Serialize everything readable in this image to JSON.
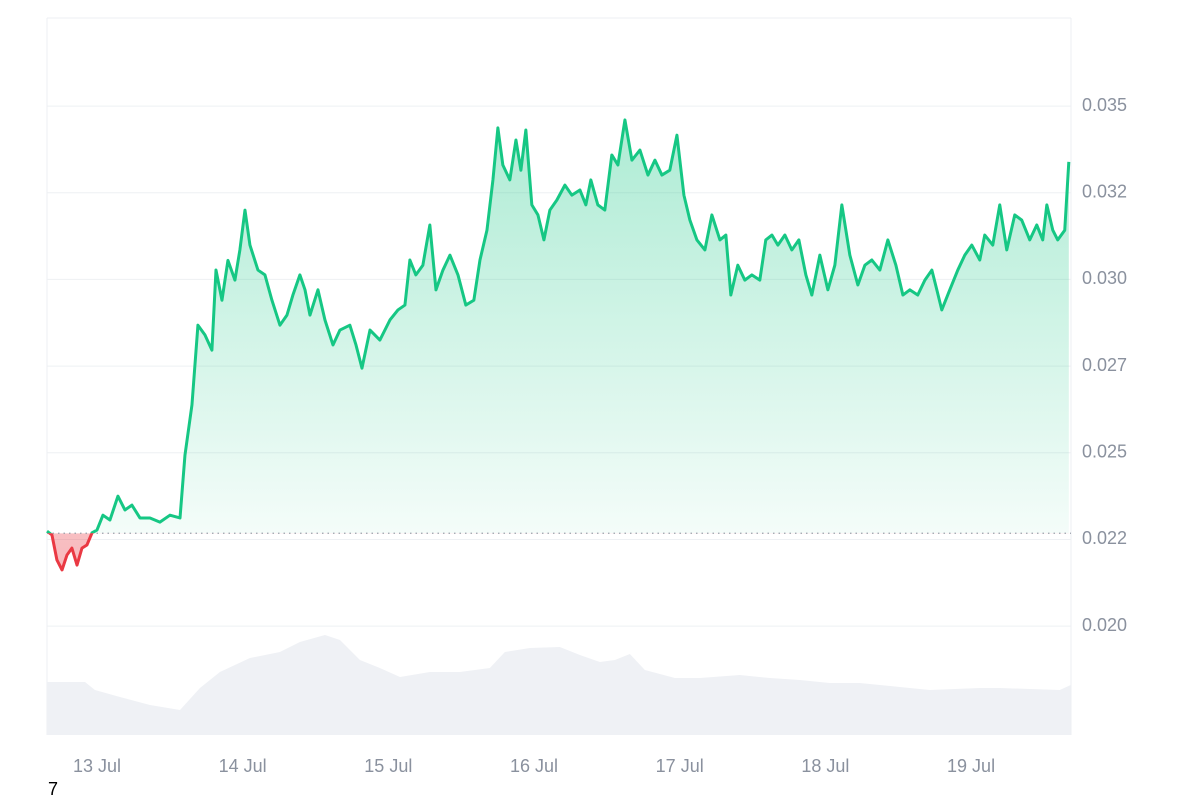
{
  "chart_data": {
    "type": "line",
    "x": [
      -0.343,
      -0.309,
      -0.275,
      -0.24,
      -0.206,
      -0.172,
      -0.137,
      -0.103,
      -0.069,
      -0.034,
      0,
      0.041,
      0.089,
      0.144,
      0.192,
      0.24,
      0.295,
      0.364,
      0.432,
      0.501,
      0.57,
      0.604,
      0.652,
      0.693,
      0.741,
      0.789,
      0.817,
      0.858,
      0.899,
      0.947,
      0.981,
      1.016,
      1.05,
      1.105,
      1.153,
      1.201,
      1.256,
      1.304,
      1.345,
      1.393,
      1.428,
      1.462,
      1.517,
      1.565,
      1.62,
      1.668,
      1.736,
      1.778,
      1.819,
      1.874,
      1.942,
      2.011,
      2.066,
      2.114,
      2.148,
      2.189,
      2.237,
      2.285,
      2.327,
      2.375,
      2.423,
      2.478,
      2.532,
      2.587,
      2.629,
      2.677,
      2.718,
      2.752,
      2.786,
      2.834,
      2.876,
      2.91,
      2.944,
      2.985,
      3.027,
      3.068,
      3.109,
      3.157,
      3.212,
      3.26,
      3.315,
      3.356,
      3.39,
      3.438,
      3.486,
      3.534,
      3.576,
      3.624,
      3.672,
      3.727,
      3.782,
      3.83,
      3.878,
      3.932,
      3.981,
      4.029,
      4.07,
      4.118,
      4.173,
      4.221,
      4.276,
      4.317,
      4.351,
      4.399,
      4.447,
      4.495,
      4.55,
      4.591,
      4.633,
      4.674,
      4.722,
      4.77,
      4.818,
      4.866,
      4.907,
      4.962,
      5.017,
      5.065,
      5.113,
      5.168,
      5.223,
      5.271,
      5.319,
      5.374,
      5.429,
      5.484,
      5.532,
      5.58,
      5.634,
      5.683,
      5.731,
      5.765,
      5.799,
      5.854,
      5.909,
      5.957,
      6.005,
      6.06,
      6.094,
      6.149,
      6.197,
      6.245,
      6.3,
      6.348,
      6.403,
      6.451,
      6.492,
      6.52,
      6.561,
      6.595,
      6.643,
      6.671
    ],
    "series": [
      {
        "color": "#16c784",
        "down_color": "#ea3943",
        "values": [
          0.02274,
          0.02263,
          0.02191,
          0.02162,
          0.02205,
          0.02225,
          0.02176,
          0.02225,
          0.02234,
          0.02269,
          0.02277,
          0.0232,
          0.02306,
          0.02375,
          0.02335,
          0.02349,
          0.02312,
          0.02312,
          0.023,
          0.0232,
          0.02312,
          0.02493,
          0.02638,
          0.02868,
          0.0284,
          0.02796,
          0.03027,
          0.0294,
          0.03055,
          0.02998,
          0.03085,
          0.032,
          0.03099,
          0.03027,
          0.03013,
          0.0294,
          0.02868,
          0.02897,
          0.02955,
          0.03013,
          0.0297,
          0.02897,
          0.0297,
          0.02883,
          0.02811,
          0.02854,
          0.02868,
          0.02811,
          0.02744,
          0.02854,
          0.02825,
          0.02883,
          0.02912,
          0.02926,
          0.03056,
          0.03013,
          0.03041,
          0.03157,
          0.0297,
          0.03027,
          0.0307,
          0.03013,
          0.02926,
          0.0294,
          0.03056,
          0.03142,
          0.03287,
          0.03437,
          0.0333,
          0.03287,
          0.03402,
          0.03315,
          0.03431,
          0.03215,
          0.03186,
          0.03114,
          0.032,
          0.03229,
          0.03272,
          0.03243,
          0.03258,
          0.03215,
          0.03287,
          0.03215,
          0.032,
          0.03359,
          0.0333,
          0.0346,
          0.03344,
          0.03373,
          0.03301,
          0.03344,
          0.03301,
          0.03315,
          0.03416,
          0.03243,
          0.03171,
          0.03114,
          0.03085,
          0.03186,
          0.03114,
          0.03128,
          0.02955,
          0.03041,
          0.02998,
          0.03013,
          0.02998,
          0.03114,
          0.03128,
          0.03099,
          0.03128,
          0.03085,
          0.03114,
          0.03013,
          0.02955,
          0.0307,
          0.0297,
          0.03041,
          0.03215,
          0.0307,
          0.02984,
          0.03041,
          0.03056,
          0.03027,
          0.03114,
          0.03041,
          0.02955,
          0.0297,
          0.02955,
          0.02998,
          0.03027,
          0.0297,
          0.02912,
          0.0297,
          0.03027,
          0.0307,
          0.03099,
          0.03056,
          0.03128,
          0.03099,
          0.03215,
          0.03085,
          0.03186,
          0.03171,
          0.03114,
          0.03157,
          0.03114,
          0.03215,
          0.03142,
          0.03114,
          0.03142,
          0.03339
        ]
      }
    ],
    "baseline": 0.02268,
    "volume": {
      "color": "#eff1f5",
      "axis": "y2",
      "x": [
        -0.343,
        -0.082,
        -0.014,
        0.158,
        0.364,
        0.57,
        0.707,
        0.844,
        1.05,
        1.256,
        1.393,
        1.565,
        1.668,
        1.805,
        1.942,
        2.08,
        2.285,
        2.491,
        2.697,
        2.8,
        2.972,
        3.177,
        3.315,
        3.452,
        3.555,
        3.658,
        3.761,
        3.967,
        4.139,
        4.413,
        4.619,
        4.825,
        5.03,
        5.236,
        5.511,
        5.717,
        6.06,
        6.197,
        6.609,
        6.684
      ],
      "values": [
        26.5,
        26.5,
        22.5,
        19,
        15,
        12.5,
        23.5,
        31.5,
        38.5,
        41.5,
        46.5,
        50,
        47.5,
        37.5,
        33.5,
        29,
        31.5,
        31.5,
        33.5,
        41.5,
        43.5,
        44,
        40,
        36.5,
        37.5,
        40.5,
        32.5,
        28.5,
        28.5,
        30,
        28.5,
        27.5,
        26,
        26,
        24,
        22.5,
        23.5,
        23.5,
        22.5,
        25
      ]
    },
    "y2lim": [
      0,
      100
    ],
    "xlim": [
      -0.343,
      6.686
    ],
    "xticks": [
      {
        "value": 0,
        "label": "13 Jul"
      },
      {
        "value": 1,
        "label": "14 Jul"
      },
      {
        "value": 2,
        "label": "15 Jul"
      },
      {
        "value": 3,
        "label": "16 Jul"
      },
      {
        "value": 4,
        "label": "17 Jul"
      },
      {
        "value": 5,
        "label": "18 Jul"
      },
      {
        "value": 6,
        "label": "19 Jul"
      }
    ],
    "ylim": [
      0.01686,
      0.03754
    ],
    "yticks": [
      {
        "value": 0.02,
        "label": "0.020"
      },
      {
        "value": 0.0225,
        "label": "0.022"
      },
      0.025,
      {
        "value": 0.0275,
        "label": "0.027"
      },
      {
        "value": 0.03,
        "label": "0.030"
      },
      {
        "value": 0.0325,
        "label": "0.032"
      },
      0.035
    ],
    "grid": true,
    "footnote": "7"
  }
}
